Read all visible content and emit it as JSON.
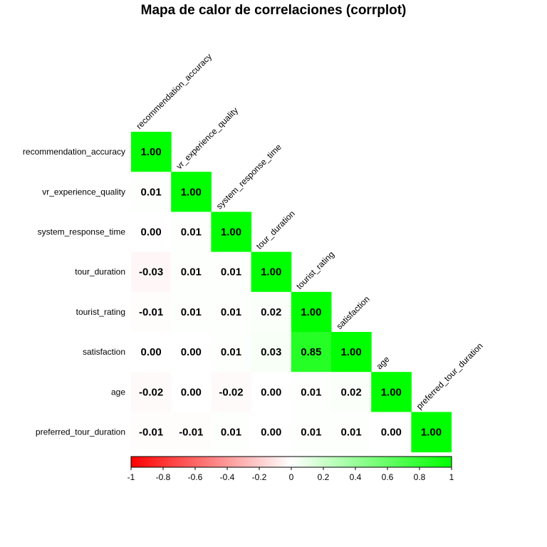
{
  "chart_data": {
    "type": "heatmap",
    "title": "Mapa de calor de correlaciones (corrplot)",
    "variables": [
      "recommendation_accuracy",
      "vr_experience_quality",
      "system_response_time",
      "tour_duration",
      "tourist_rating",
      "satisfaction",
      "age",
      "preferred_tour_duration"
    ],
    "matrix_lower": [
      [
        1.0
      ],
      [
        0.01,
        1.0
      ],
      [
        0.0,
        0.01,
        1.0
      ],
      [
        -0.03,
        0.01,
        0.01,
        1.0
      ],
      [
        -0.01,
        0.01,
        0.01,
        0.02,
        1.0
      ],
      [
        0.0,
        0.0,
        0.01,
        0.03,
        0.85,
        1.0
      ],
      [
        -0.02,
        0.0,
        -0.02,
        0.0,
        0.01,
        0.02,
        1.0
      ],
      [
        -0.01,
        -0.01,
        0.01,
        0.0,
        0.01,
        0.01,
        0.0,
        1.0
      ]
    ],
    "display_lower": [
      [
        "1.00"
      ],
      [
        "0.01",
        "1.00"
      ],
      [
        "0.00",
        "0.01",
        "1.00"
      ],
      [
        "-0.03",
        "0.01",
        "0.01",
        "1.00"
      ],
      [
        "-0.01",
        "0.01",
        "0.01",
        "0.02",
        "1.00"
      ],
      [
        "0.00",
        "0.00",
        "0.01",
        "0.03",
        "0.85",
        "1.00"
      ],
      [
        "-0.02",
        "0.00",
        "-0.02",
        "0.00",
        "0.01",
        "0.02",
        "1.00"
      ],
      [
        "-0.01",
        "-0.01",
        "0.01",
        "0.00",
        "0.01",
        "0.01",
        "0.00",
        "1.00"
      ]
    ],
    "colorbar": {
      "range": [
        -1,
        1
      ],
      "ticks": [
        -1,
        -0.8,
        -0.6,
        -0.4,
        -0.2,
        0,
        0.2,
        0.4,
        0.6,
        0.8,
        1
      ],
      "tick_labels": [
        "-1",
        "-0.8",
        "-0.6",
        "-0.4",
        "-0.2",
        "0",
        "0.2",
        "0.4",
        "0.6",
        "0.8",
        "1"
      ],
      "colors": [
        "#FF0000",
        "#FFFFFF",
        "#00FF00"
      ],
      "placement": "bottom"
    }
  }
}
